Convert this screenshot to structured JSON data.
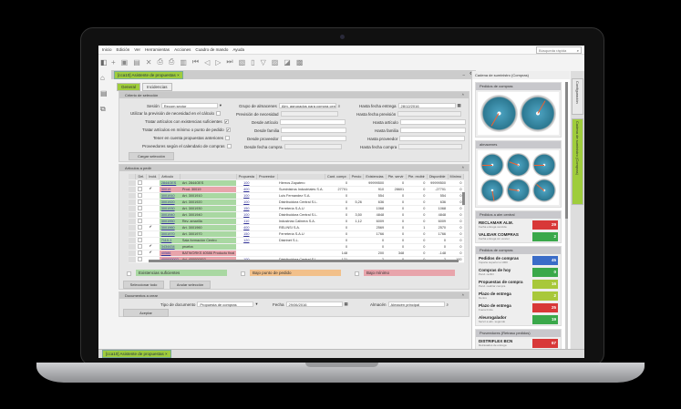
{
  "menu": [
    "Inicio",
    "Edición",
    "Ver",
    "Herramientas",
    "Acciones",
    "Cuadro de mando",
    "Ayuda"
  ],
  "search_placeholder": "Búsqueda rápida",
  "doc_tab": "[cca10] Asistente de propuestas",
  "subtabs": [
    "General",
    "Incidencias"
  ],
  "criteria": {
    "title": "Criterio de selección",
    "sesion_label": "Sesión",
    "sesion_value": "Recom sector",
    "utilizar_label": "Utilizar la previsión de necesidad en el cálculo",
    "tratar_exist_label": "Tratar artículos con existencias suficientes",
    "tratar_min_label": "Tratar artículos en mínimo o punto de pedido",
    "tener_label": "Tener en cuenta propuestas anteriores",
    "proveedores_label": "Proveedores según el calendario de compras",
    "grupo_label": "Grupo de almacenes",
    "grupo_value": "Alm. agrupados para compra centralizada",
    "prevision_label": "Previsión de necesidad",
    "desde_articulo": "Desde artículo",
    "desde_familia": "Desde familia",
    "desde_proveedor": "Desde proveedor",
    "desde_fecha": "Desde fecha compra",
    "hasta_entrega_label": "Hasta fecha entrega",
    "hasta_entrega_value": "28/12/2016",
    "hasta_prevision": "Hasta fecha previsión",
    "hasta_articulo": "Hasta artículo",
    "hasta_familia": "Hasta familia",
    "hasta_proveedor": "Hasta proveedor",
    "hasta_fecha": "Hasta fecha compra",
    "cargar": "Cargar selección"
  },
  "articles": {
    "title": "Artículos a pedir",
    "columns": [
      "Del.",
      "Incid.",
      "Artículo",
      "",
      "Propuesta",
      "Proveedor",
      "",
      "Cant. compr.",
      "Precio",
      "Existencias",
      "Pte. servir",
      "Pte. recibir",
      "Disponible",
      "Mínimo"
    ],
    "rows": [
      {
        "color": "green",
        "inc": false,
        "code": "2844OES",
        "desc": "Art. 2844OES",
        "prop": "100",
        "prov": "Hierros Zapatero",
        "cant": "0",
        "precio": "",
        "exist": "99999500",
        "pserv": "0",
        "precib": "0",
        "disp": "99999500",
        "min": "0"
      },
      {
        "color": "pink",
        "inc": true,
        "code": "30019",
        "desc": "Prod. 30019",
        "prop": "400",
        "prov": "Suministros Industriales S.A.",
        "cant": "27701",
        "precio": "",
        "exist": "910",
        "pserv": "28601",
        "precib": "0",
        "disp": "-27701",
        "min": "0"
      },
      {
        "color": "green",
        "inc": false,
        "code": "3001910",
        "desc": "Art. 3001910",
        "prop": "100",
        "prov": "Luis Fernandez S.A.",
        "cant": "0",
        "precio": "",
        "exist": "554",
        "pserv": "0",
        "precib": "0",
        "disp": "554",
        "min": "0"
      },
      {
        "color": "green",
        "inc": false,
        "code": "3001920",
        "desc": "Art. 3001920",
        "prop": "100",
        "prov": "Distribuidora Central S.L.",
        "cant": "0",
        "precio": "5,26",
        "exist": "636",
        "pserv": "0",
        "precib": "0",
        "disp": "636",
        "min": "0"
      },
      {
        "color": "green",
        "inc": false,
        "code": "3001930",
        "desc": "Art. 3001930",
        "prop": "150",
        "prov": "Ferretería S.A.U",
        "cant": "0",
        "precio": "",
        "exist": "1068",
        "pserv": "0",
        "precib": "0",
        "disp": "1068",
        "min": "0"
      },
      {
        "color": "green",
        "inc": false,
        "code": "3001940",
        "desc": "Art. 3001940",
        "prop": "100",
        "prov": "Distribuidora Central S.L.",
        "cant": "0",
        "precio": "3,50",
        "exist": "4848",
        "pserv": "0",
        "precib": "0",
        "disp": "4848",
        "min": "0"
      },
      {
        "color": "green",
        "inc": false,
        "code": "3001950",
        "desc": "Rev. amarilla",
        "prop": "110",
        "prov": "Industrias Calinera S.A.",
        "cant": "0",
        "precio": "1,12",
        "exist": "6009",
        "pserv": "0",
        "precib": "0",
        "disp": "6009",
        "min": "0"
      },
      {
        "color": "green",
        "inc": true,
        "code": "3001960",
        "desc": "Art. 3001960",
        "prop": "400",
        "prov": "RELINSI S.A.",
        "cant": "0",
        "precio": "",
        "exist": "2569",
        "pserv": "0",
        "precib": "1",
        "disp": "2570",
        "min": "0"
      },
      {
        "color": "green",
        "inc": false,
        "code": "3001970",
        "desc": "Art. 3001970",
        "prop": "150",
        "prov": "Ferretería S.A.U",
        "cant": "0",
        "precio": "",
        "exist": "1766",
        "pserv": "0",
        "precib": "0",
        "disp": "1766",
        "min": "0"
      },
      {
        "color": "green",
        "inc": false,
        "code": "7110-1",
        "desc": "Sala formación Centro",
        "prop": "120",
        "prov": "Distrinet S.L.",
        "cant": "0",
        "precio": "",
        "exist": "0",
        "pserv": "0",
        "precib": "0",
        "disp": "0",
        "min": "0"
      },
      {
        "color": "green",
        "inc": true,
        "code": "3434434",
        "desc": "prueba",
        "prop": "",
        "prov": "",
        "cant": "0",
        "precio": "",
        "exist": "0",
        "pserv": "0",
        "precib": "0",
        "disp": "0",
        "min": "0"
      },
      {
        "color": "pink",
        "inc": true,
        "code": "40586",
        "desc": "BATWORKS 40586 Producto final",
        "prop": "",
        "prov": "",
        "cant": "148",
        "precio": "",
        "exist": "200",
        "pserv": "348",
        "precib": "0",
        "disp": "-148",
        "min": "0"
      },
      {
        "color": "pink",
        "inc": false,
        "code": "400000002",
        "desc": "Art. 400000002",
        "prop": "100",
        "prov": "Distribuidora Central S.L.",
        "cant": "121",
        "precio": "",
        "exist": "-2",
        "pserv": "0",
        "precib": "0",
        "disp": "-2",
        "min": "100"
      },
      {
        "color": "green",
        "inc": false,
        "code": "600",
        "desc": "Art. 600",
        "prop": "100",
        "prov": "RELINSI S.A.",
        "cant": "0",
        "precio": "3,00",
        "exist": "0",
        "pserv": "0",
        "precib": "0",
        "disp": "0",
        "min": "0"
      },
      {
        "color": "green",
        "inc": false,
        "code": "5000",
        "desc": "Art. 5000",
        "prop": "100",
        "prov": "Distribuidora Central S.L.",
        "cant": "0",
        "precio": "",
        "exist": "5920",
        "pserv": "0",
        "precib": "0",
        "disp": "5920",
        "min": "0"
      }
    ],
    "legend": [
      "Existencias suficientes",
      "Bajo punto de pedido",
      "Bajo mínimo"
    ],
    "legend_colors": [
      "#a9d8a2",
      "#f2c08a",
      "#e8a4ab"
    ],
    "select_all": "Seleccionar todo",
    "cancel_sel": "Anular selección"
  },
  "documents": {
    "title": "Documentos a crear",
    "tipo_label": "Tipo de documento",
    "tipo_value": "Propuesta de compras",
    "fecha_label": "Fecha",
    "fecha_value": "29/06/2016",
    "almacen_label": "Almacén",
    "almacen_value": "Almacén principal",
    "aceptar": "Aceptar"
  },
  "right_panel": {
    "title": "Cadena de suministro (Compras)",
    "w1": "Pedidos de compras",
    "w2": "almacenes",
    "w3": {
      "title": "Pedidos a alm central",
      "items": [
        {
          "t": "RECLAMAR ALM.",
          "s": "Fecha entrega vencida",
          "v": "29",
          "c": "#d83838"
        },
        {
          "t": "VALIDAR COMPRAS",
          "s": "Fecha entrega sin vencer",
          "v": "2",
          "c": "#3aa84a"
        }
      ]
    },
    "w4": {
      "title": "Pedidos de compras",
      "items": [
        {
          "t": "Pedidos de compras",
          "s": "Importe superior a 1000",
          "v": "45",
          "c": "#3a6cc8"
        },
        {
          "t": "Compras de hoy",
          "s": "Pend. recibir",
          "v": "0",
          "c": "#3aa84a"
        },
        {
          "t": "Propuestas de compra",
          "s": "Pend. realizar compra",
          "v": "16",
          "c": "#a8c83a"
        },
        {
          "t": "Plazo de entrega",
          "s": "Dentro",
          "v": "2",
          "c": "#a8c83a"
        },
        {
          "t": "Plazo de entrega",
          "s": "Fuera límite",
          "v": "25",
          "c": "#d83838"
        },
        {
          "t": "Aleurogalador",
          "s": "Servir a alm. segundo",
          "v": "19",
          "c": "#3aa84a"
        }
      ]
    },
    "w5": {
      "title": "Proveedores (Retraso pedidos)",
      "items": [
        {
          "t": "DISTRIFLEX BCN",
          "s": "Retrasados de entrega",
          "v": "67",
          "c": "#d83838"
        },
        {
          "t": "ALMENGAR S.L.",
          "s": "Retrasados de entrega",
          "v": "29",
          "c": "#a8c83a"
        }
      ]
    }
  },
  "vtabs": [
    "Configuración",
    "Cadena de suministro (Compras)"
  ],
  "taskbar_tab": "[cca10] Asistente de propuestas"
}
